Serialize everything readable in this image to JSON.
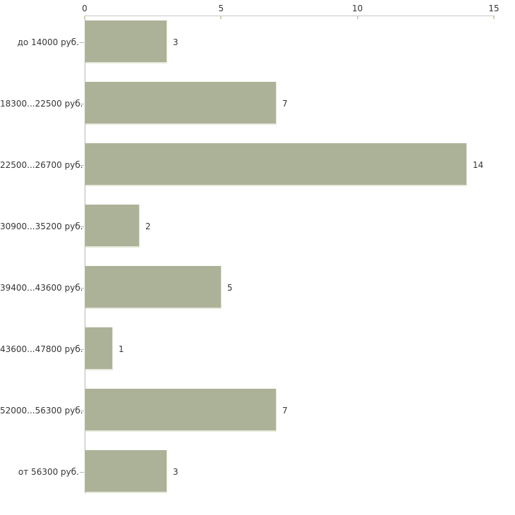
{
  "chart_data": {
    "type": "bar",
    "orientation": "horizontal",
    "title": "",
    "xlabel": "",
    "ylabel": "",
    "categories": [
      "до 14000 руб.",
      "18300...22500 руб.",
      "22500...26700 руб.",
      "30900...35200 руб.",
      "39400...43600 руб.",
      "43600...47800 руб.",
      "52000...56300 руб.",
      "от 56300 руб."
    ],
    "values": [
      3,
      7,
      14,
      2,
      5,
      1,
      7,
      3
    ],
    "value_labels": [
      "3",
      "7",
      "14",
      "2",
      "5",
      "1",
      "7",
      "3"
    ],
    "x_ticks": [
      "0",
      "5",
      "10",
      "15"
    ],
    "x_tick_values": [
      0,
      5,
      10,
      15
    ],
    "xlim": [
      0,
      15
    ],
    "grid": false,
    "legend": null,
    "colors": {
      "bar_fill": "#acb297",
      "axis_line": "#c9c9c9",
      "category_axis_line": "#b5b5b5",
      "tick_mark": "#ccd1aa",
      "category_tick": "#b3b7a2",
      "text": "#363636",
      "background": "#ffffff"
    }
  }
}
